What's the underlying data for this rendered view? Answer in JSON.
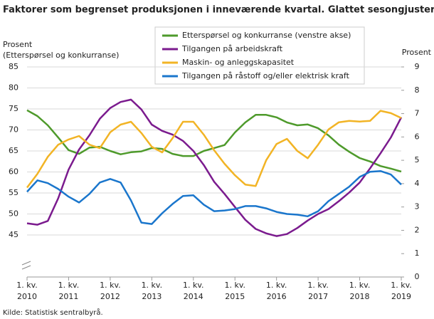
{
  "chart_data": {
    "type": "line",
    "title": "Faktorer som begrenset produksjonen i inneværende kvartal. Glattet sesongjustert",
    "y_label": [
      "Prosent",
      "(Etterspørsel  og konkurranse)"
    ],
    "y2_label": "Prosent",
    "source": "Kilde: Statistisk sentralbyrå.",
    "quarter_label": "1. kv.",
    "categories": [
      "2010",
      null,
      null,
      null,
      "2011",
      null,
      null,
      null,
      "2012",
      null,
      null,
      null,
      "2013",
      null,
      null,
      null,
      "2014",
      null,
      null,
      null,
      "2015",
      null,
      null,
      null,
      "2016",
      null,
      null,
      null,
      "2017",
      null,
      null,
      null,
      "2018",
      null,
      null,
      null,
      "2019"
    ],
    "ylim": [
      35,
      85
    ],
    "yticks": [
      45,
      50,
      55,
      60,
      65,
      70,
      75,
      80,
      85
    ],
    "y2lim": [
      0,
      9
    ],
    "y2ticks": [
      0,
      1,
      2,
      3,
      4,
      5,
      6,
      7,
      8,
      9
    ],
    "grid": true,
    "series": [
      {
        "name": "Etterspørsel og konkurranse (venstre akse)",
        "color": "#4e9a2b",
        "axis": "y",
        "values": [
          74.7,
          73.3,
          71.1,
          68.2,
          65.2,
          64.3,
          65.8,
          66.0,
          65.0,
          64.2,
          64.7,
          64.9,
          65.7,
          65.5,
          64.3,
          63.8,
          63.8,
          65.0,
          65.7,
          66.4,
          69.4,
          71.8,
          73.6,
          73.6,
          73.0,
          71.8,
          71.1,
          71.3,
          70.4,
          68.7,
          66.5,
          64.8,
          63.3,
          62.5,
          61.4,
          60.8,
          60.1
        ]
      },
      {
        "name": "Tilgangen på arbeidskraft",
        "color": "#7b1b8e",
        "axis": "y2",
        "values": [
          2.3,
          2.24,
          2.4,
          3.37,
          4.6,
          5.46,
          6.07,
          6.78,
          7.24,
          7.5,
          7.6,
          7.18,
          6.53,
          6.26,
          6.1,
          5.83,
          5.4,
          4.8,
          4.08,
          3.56,
          3.0,
          2.45,
          2.06,
          1.87,
          1.75,
          1.84,
          2.1,
          2.42,
          2.7,
          2.91,
          3.25,
          3.62,
          4.05,
          4.66,
          5.3,
          5.98,
          6.84
        ]
      },
      {
        "name": "Maskin- og anleggskapasitet",
        "color": "#f2b425",
        "axis": "y2",
        "values": [
          3.83,
          4.42,
          5.15,
          5.67,
          5.89,
          6.04,
          5.67,
          5.52,
          6.2,
          6.53,
          6.65,
          6.17,
          5.58,
          5.34,
          5.95,
          6.65,
          6.65,
          6.1,
          5.43,
          4.85,
          4.36,
          3.96,
          3.9,
          5.0,
          5.7,
          5.92,
          5.4,
          5.09,
          5.67,
          6.32,
          6.63,
          6.69,
          6.66,
          6.69,
          7.12,
          7.02,
          6.81
        ]
      },
      {
        "name": "Tilgangen på råstoff og/eller elektrisk kraft",
        "color": "#1a76cc",
        "axis": "y2",
        "values": [
          3.65,
          4.14,
          4.02,
          3.77,
          3.44,
          3.19,
          3.56,
          4.05,
          4.2,
          4.05,
          3.28,
          2.33,
          2.27,
          2.73,
          3.13,
          3.47,
          3.5,
          3.1,
          2.82,
          2.85,
          2.91,
          3.04,
          3.04,
          2.94,
          2.79,
          2.7,
          2.67,
          2.6,
          2.82,
          3.25,
          3.56,
          3.87,
          4.29,
          4.51,
          4.54,
          4.39,
          3.96
        ]
      }
    ]
  }
}
